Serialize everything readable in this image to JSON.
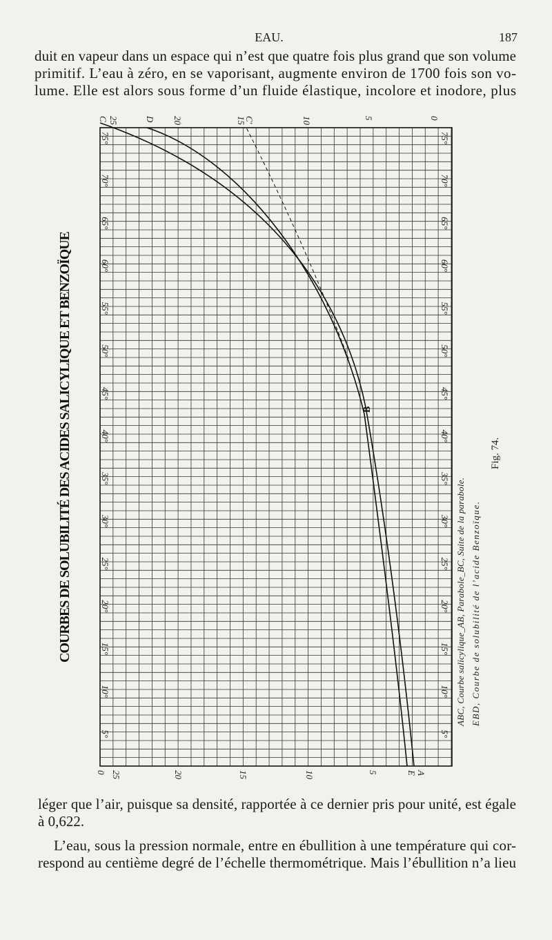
{
  "header": {
    "title": "EAU.",
    "page": "187"
  },
  "top_lines": [
    "duit en vapeur dans un espace qui n’est que quatre fois plus grand que son volume",
    "primitif. L’eau à zéro, en se vaporisant, augmente environ de 1700 fois son vo-",
    "lume. Elle est alors sous forme d’un fluide élastique, incolore et inodore, plus"
  ],
  "figure": {
    "title": "COURBES DE SOLUBILITÉ DES ACIDES SALICYLIQUE ET BENZOÏQUE",
    "top_labels": [
      "C",
      "25",
      "D",
      "20",
      "15",
      "C'",
      "10",
      "5",
      "0"
    ],
    "bottom_labels": [
      "0",
      "25",
      "20",
      "15",
      "10",
      "5",
      "E",
      "A"
    ],
    "left_degrees": [
      "75°",
      "70°",
      "65°",
      "60°",
      "55°",
      "50°",
      "45°",
      "40°",
      "35°",
      "30°",
      "25°",
      "20°",
      "15°",
      "10°",
      "5°"
    ],
    "right_degrees": [
      "75°",
      "70°",
      "65°",
      "60°",
      "55°",
      "50°",
      "45°",
      "40°",
      "35°",
      "30°",
      "25°",
      "20°",
      "15°",
      "10°",
      "5°"
    ],
    "point_b": "B",
    "captions": [
      "ABC, Courbe salicylique_AB, Parabole_BC, Suite de la parabole.",
      "EBD, Courbe de solubilité de l’acide Benzoïque."
    ],
    "fig_label": "Fig. 74."
  },
  "bottom_lines": [
    "léger que l’air, puisque sa densité, rapportée à ce dernier pris pour unité, est égale",
    "à 0,622.",
    "L’eau, sous la pression normale, entre en ébullition à une température qui cor-",
    "respond au centième degré de l’échelle thermométrique. Mais l’ébullition n’a lieu"
  ]
}
